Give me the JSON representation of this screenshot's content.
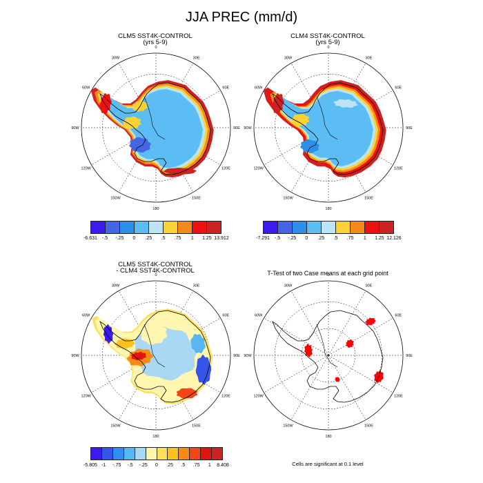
{
  "title": "JJA PREC (mm/d)",
  "panels": [
    {
      "title_line1": "CLM5 SST4K-CONTROL",
      "title_line2": "(yrs 5-9)"
    },
    {
      "title_line1": "CLM4 SST4K-CONTROL",
      "title_line2": "(yrs 5-9)"
    },
    {
      "title_line1": "CLM5 SST4K-CONTROL",
      "title_line2": "- CLM4 SST4K-CONTROL"
    },
    {
      "title_line1": "T-Test of two Case means at each grid point",
      "title_line2": ""
    }
  ],
  "lon_labels": [
    "0",
    "30E",
    "60E",
    "90E",
    "120E",
    "150E",
    "180",
    "150W",
    "120W",
    "90W",
    "60W",
    "30W"
  ],
  "colorbars": [
    {
      "colors": [
        "#3b1bf0",
        "#4466e4",
        "#2e8fe8",
        "#5cbdf4",
        "#bde4f6",
        "#fbd234",
        "#f58a1a",
        "#f11010",
        "#cc2222"
      ],
      "labels": [
        "-6.631",
        "-.5",
        "-.25",
        "0",
        ".25",
        ".5",
        ".75",
        "1",
        "1.25",
        "13.912"
      ]
    },
    {
      "colors": [
        "#3b1bf0",
        "#4466e4",
        "#2e8fe8",
        "#5cbdf4",
        "#bde4f6",
        "#fbd234",
        "#f58a1a",
        "#f11010",
        "#cc2222"
      ],
      "labels": [
        "-7.291",
        "-.5",
        "-.25",
        "0",
        ".25",
        ".5",
        ".75",
        "1",
        "1.25",
        "12.126"
      ]
    },
    {
      "colors": [
        "#3b1bf0",
        "#3555e8",
        "#2f8ef0",
        "#59b6f4",
        "#a9d8f4",
        "#fff6b0",
        "#fde05a",
        "#fbc21e",
        "#f88b16",
        "#f34515",
        "#e2140f",
        "#cc2222"
      ],
      "labels": [
        "-5.805",
        "-1",
        "-.75",
        "-.5",
        "-.25",
        "0",
        ".25",
        ".5",
        ".75",
        "1",
        "8.408"
      ]
    }
  ],
  "significance_note": "Cells are significant at 0.1 level"
}
